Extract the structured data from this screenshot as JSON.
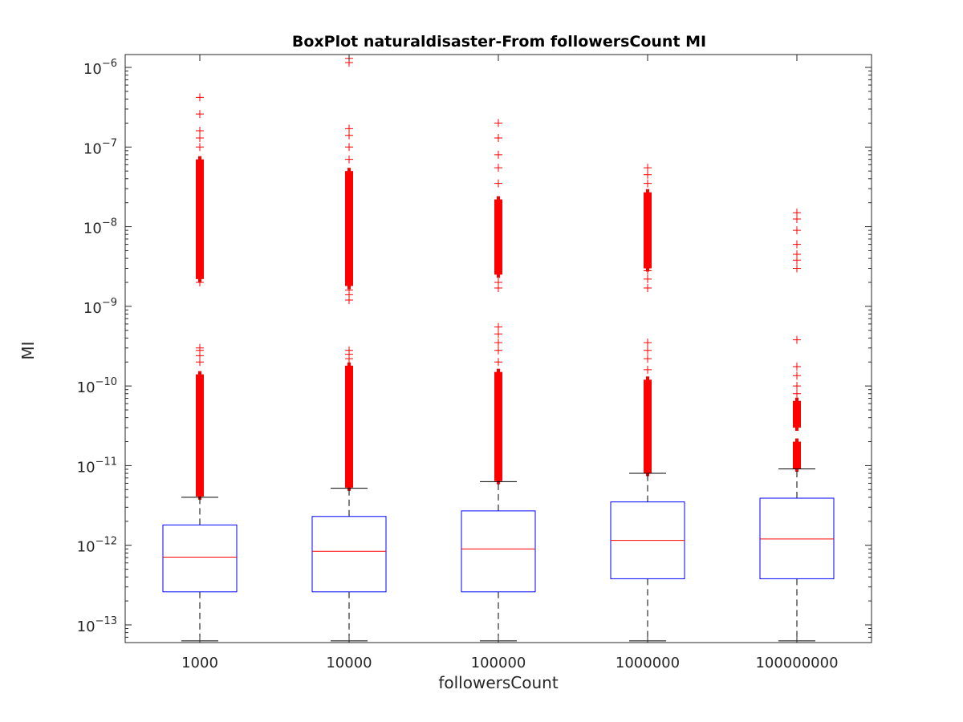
{
  "chart_data": {
    "type": "box",
    "title": "BoxPlot naturaldisaster-From followersCount MI",
    "xlabel": "followersCount",
    "ylabel": "MI",
    "yscale": "log",
    "ylim": [
      6e-14,
      1.45e-06
    ],
    "y_ticks": [
      {
        "base": "10",
        "exp": "−13",
        "value": 1e-13
      },
      {
        "base": "10",
        "exp": "−12",
        "value": 1e-12
      },
      {
        "base": "10",
        "exp": "−11",
        "value": 1e-11
      },
      {
        "base": "10",
        "exp": "−10",
        "value": 1e-10
      },
      {
        "base": "10",
        "exp": "−9",
        "value": 1e-09
      },
      {
        "base": "10",
        "exp": "−8",
        "value": 1e-08
      },
      {
        "base": "10",
        "exp": "−7",
        "value": 1e-07
      },
      {
        "base": "10",
        "exp": "−6",
        "value": 1e-06
      }
    ],
    "grid": false,
    "colors": {
      "box": "#0000ff",
      "median": "#ff0000",
      "whisker": "#000000",
      "outlier": "#ff0000"
    },
    "categories": [
      "1000",
      "10000",
      "100000",
      "1000000",
      "100000000"
    ],
    "boxes": [
      {
        "category": "1000",
        "whisker_low": 6.3e-14,
        "q1": 2.6e-13,
        "median": 7.1e-13,
        "q3": 1.8e-12,
        "whisker_high": 4e-12,
        "outlier_bands": [
          [
            4.1e-12,
            1.4e-10
          ],
          [
            2.2e-09,
            7e-08
          ]
        ],
        "outliers": [
          2e-10,
          2.4e-10,
          2.8e-10,
          3e-10,
          2e-09,
          2.3e-09,
          1e-07,
          1.3e-07,
          1.6e-07,
          2.6e-07,
          4.2e-07
        ]
      },
      {
        "category": "10000",
        "whisker_low": 6.3e-14,
        "q1": 2.6e-13,
        "median": 8.4e-13,
        "q3": 2.3e-12,
        "whisker_high": 5.2e-12,
        "outlier_bands": [
          [
            5.3e-12,
            1.8e-10
          ],
          [
            1.8e-09,
            5e-08
          ]
        ],
        "outliers": [
          2.2e-10,
          2.5e-10,
          2.8e-10,
          1.2e-09,
          1.4e-09,
          1.6e-09,
          7e-08,
          1e-07,
          1.4e-07,
          1.7e-07,
          1.15e-06,
          1.3e-06
        ]
      },
      {
        "category": "100000",
        "whisker_low": 6.3e-14,
        "q1": 2.6e-13,
        "median": 9e-13,
        "q3": 2.7e-12,
        "whisker_high": 6.3e-12,
        "outlier_bands": [
          [
            6.4e-12,
            1.5e-10
          ],
          [
            2.5e-09,
            2.2e-08
          ]
        ],
        "outliers": [
          2e-10,
          2.8e-10,
          3.5e-10,
          4.5e-10,
          5.5e-10,
          1.7e-09,
          2e-09,
          3.5e-08,
          5.5e-08,
          8e-08,
          1.3e-07,
          2e-07
        ]
      },
      {
        "category": "1000000",
        "whisker_low": 6.3e-14,
        "q1": 3.8e-13,
        "median": 1.15e-12,
        "q3": 3.5e-12,
        "whisker_high": 8e-12,
        "outlier_bands": [
          [
            8.1e-12,
            1.2e-10
          ],
          [
            3e-09,
            2.7e-08
          ]
        ],
        "outliers": [
          1.6e-10,
          2.2e-10,
          2.8e-10,
          3.5e-10,
          1.7e-09,
          2.2e-09,
          2.8e-09,
          3.5e-08,
          4.5e-08,
          5.5e-08
        ]
      },
      {
        "category": "100000000",
        "whisker_low": 6.3e-14,
        "q1": 3.8e-13,
        "median": 1.2e-12,
        "q3": 3.9e-12,
        "whisker_high": 9.1e-12,
        "outlier_bands": [
          [
            9.2e-12,
            2e-11
          ],
          [
            3e-11,
            6.5e-11
          ]
        ],
        "outliers": [
          8e-11,
          1e-10,
          1.35e-10,
          1.75e-10,
          3.8e-10,
          3e-09,
          3.8e-09,
          4.5e-09,
          6e-09,
          9e-09,
          1.25e-08,
          1.5e-08
        ]
      }
    ]
  }
}
